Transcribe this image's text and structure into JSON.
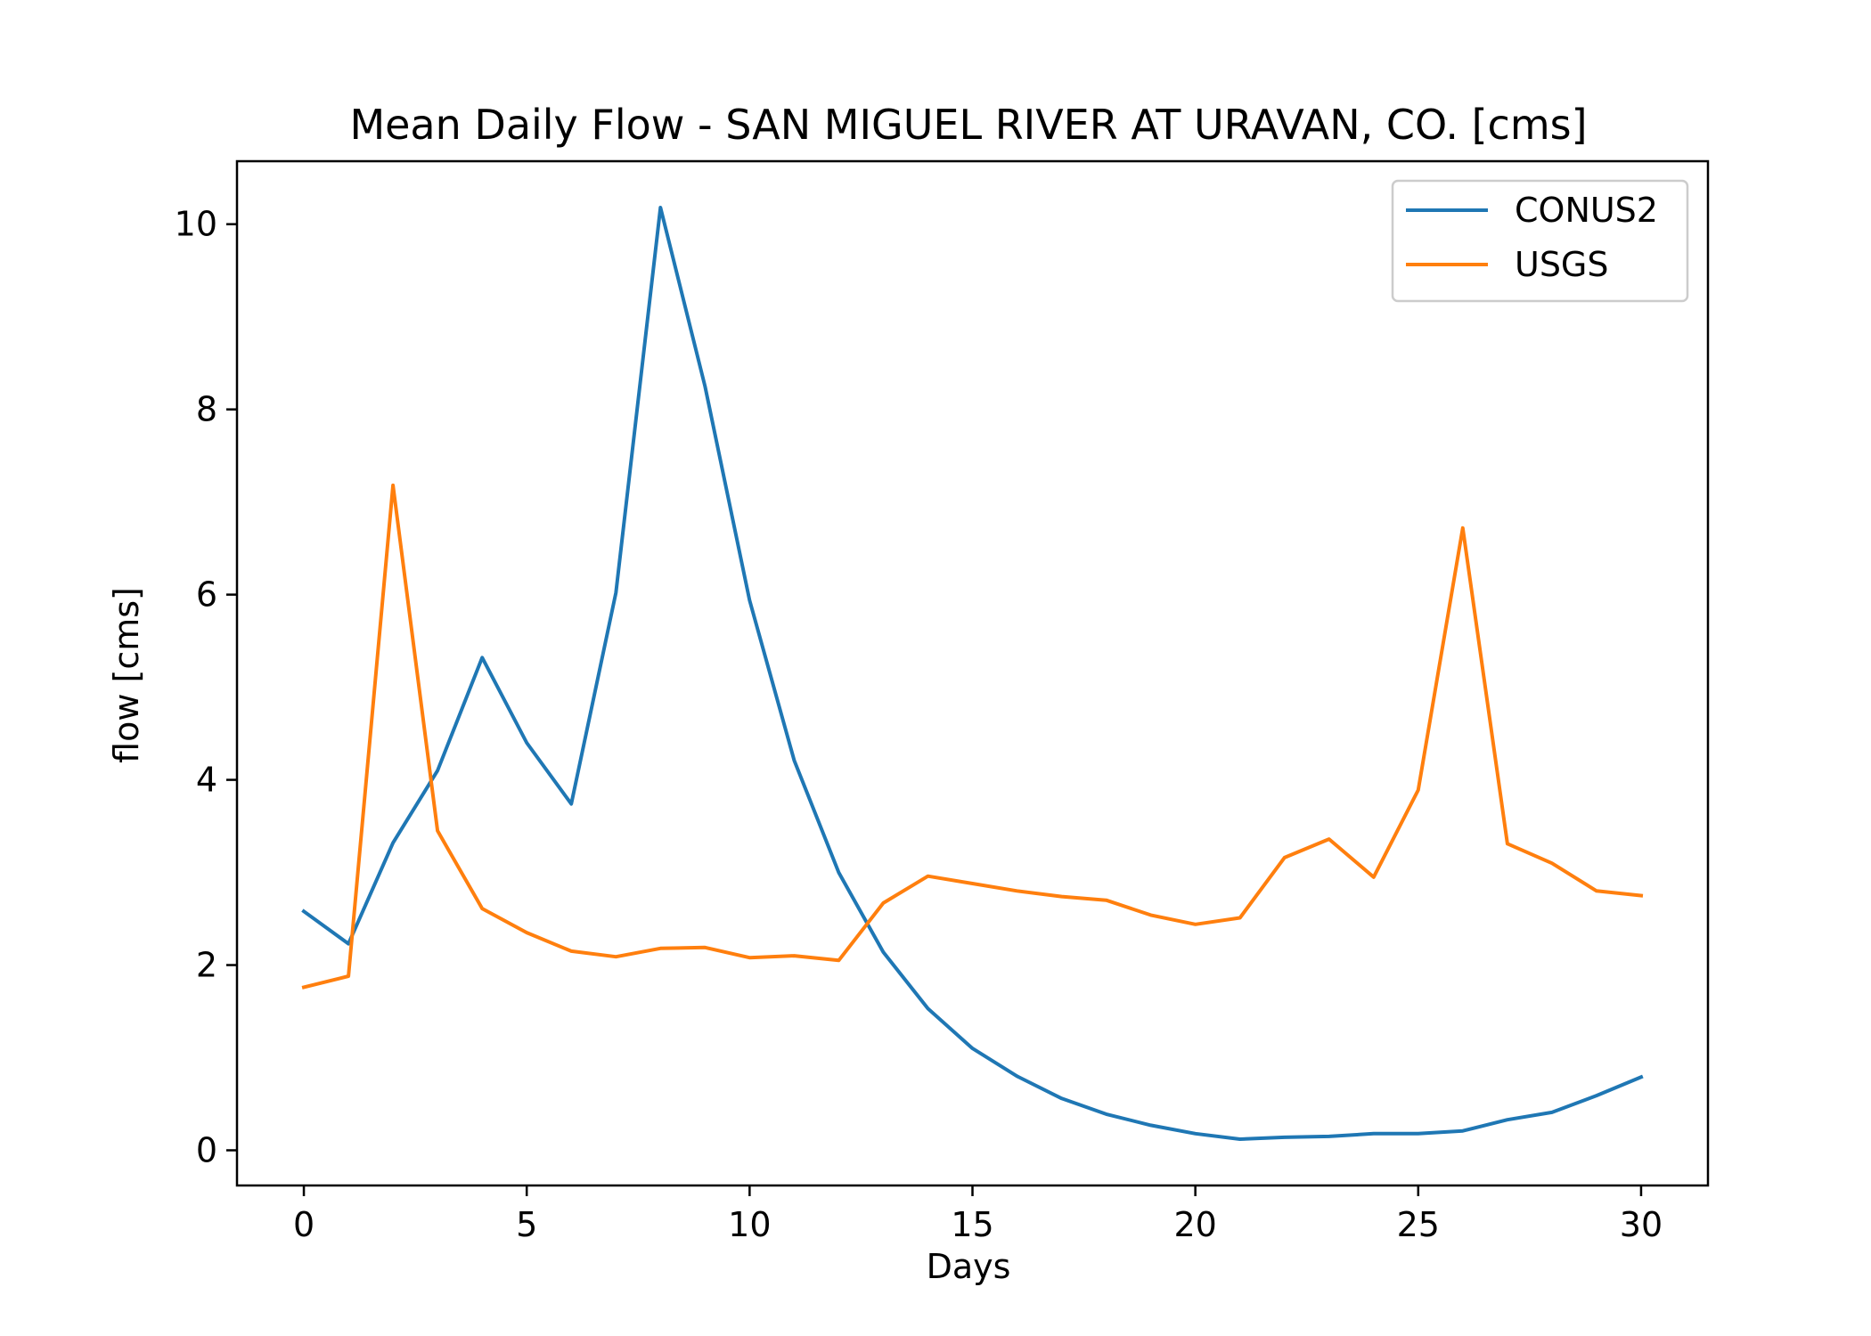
{
  "chart_data": {
    "type": "line",
    "title": "Mean Daily Flow - SAN MIGUEL RIVER AT URAVAN, CO. [cms]",
    "xlabel": "Days",
    "ylabel": "flow [cms]",
    "xlim": [
      -1.5,
      31.5
    ],
    "ylim": [
      -0.38,
      10.68
    ],
    "xticks": [
      0,
      5,
      10,
      15,
      20,
      25,
      30
    ],
    "yticks": [
      0,
      2,
      4,
      6,
      8,
      10
    ],
    "xtick_labels": [
      "0",
      "5",
      "10",
      "15",
      "20",
      "25",
      "30"
    ],
    "ytick_labels": [
      "0",
      "2",
      "4",
      "6",
      "8",
      "10"
    ],
    "grid": false,
    "legend_position": "top-right",
    "x": [
      0,
      1,
      2,
      3,
      4,
      5,
      6,
      7,
      8,
      9,
      10,
      11,
      12,
      13,
      14,
      15,
      16,
      17,
      18,
      19,
      20,
      21,
      22,
      23,
      24,
      25,
      26,
      27,
      28,
      29,
      30
    ],
    "series": [
      {
        "name": "CONUS2",
        "color": "#1f77b4",
        "values": [
          2.58,
          2.23,
          3.32,
          4.1,
          5.32,
          4.4,
          3.74,
          6.02,
          10.18,
          8.25,
          5.94,
          4.21,
          3.0,
          2.14,
          1.53,
          1.1,
          0.8,
          0.56,
          0.39,
          0.27,
          0.18,
          0.12,
          0.14,
          0.15,
          0.18,
          0.18,
          0.21,
          0.33,
          0.41,
          0.59,
          0.79
        ]
      },
      {
        "name": "USGS",
        "color": "#ff7f0e",
        "values": [
          1.76,
          1.88,
          7.18,
          3.45,
          2.61,
          2.35,
          2.15,
          2.09,
          2.18,
          2.19,
          2.08,
          2.1,
          2.05,
          2.67,
          2.96,
          2.88,
          2.8,
          2.74,
          2.7,
          2.54,
          2.44,
          2.51,
          3.16,
          3.36,
          2.95,
          3.89,
          6.72,
          3.31,
          3.1,
          2.8,
          2.75
        ]
      }
    ]
  }
}
